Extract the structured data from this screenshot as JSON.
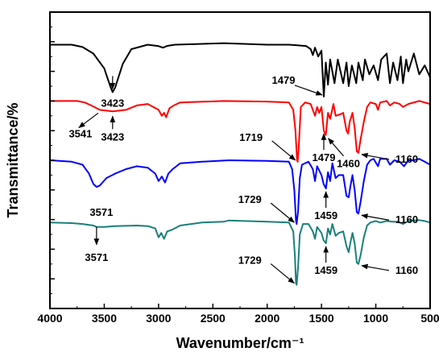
{
  "chart_data": {
    "type": "line",
    "xlabel": "Wavenumber/cm⁻¹",
    "ylabel": "Transmittance/%",
    "xlim": [
      4000,
      500
    ],
    "x_reversed": true,
    "x_ticks": [
      4000,
      3500,
      3000,
      2500,
      2000,
      1500,
      1000,
      500
    ],
    "y_tick_labels_shown": false,
    "grid": false,
    "legend": "none",
    "series": [
      {
        "color": "#000000",
        "baseline": 8.9,
        "points": [
          [
            4000,
            8.9
          ],
          [
            3800,
            8.9
          ],
          [
            3700,
            8.82
          ],
          [
            3600,
            8.6
          ],
          [
            3500,
            8.1
          ],
          [
            3440,
            7.45
          ],
          [
            3423,
            7.3
          ],
          [
            3400,
            7.45
          ],
          [
            3330,
            8.25
          ],
          [
            3250,
            8.75
          ],
          [
            3100,
            8.9
          ],
          [
            3000,
            8.85
          ],
          [
            2960,
            8.8
          ],
          [
            2920,
            8.86
          ],
          [
            2850,
            8.9
          ],
          [
            2400,
            8.95
          ],
          [
            2000,
            8.9
          ],
          [
            1800,
            8.9
          ],
          [
            1720,
            8.88
          ],
          [
            1640,
            8.85
          ],
          [
            1600,
            8.75
          ],
          [
            1580,
            8.55
          ],
          [
            1560,
            8.8
          ],
          [
            1530,
            8.5
          ],
          [
            1500,
            8.7
          ],
          [
            1479,
            7.15
          ],
          [
            1460,
            8.3
          ],
          [
            1440,
            7.55
          ],
          [
            1420,
            8.4
          ],
          [
            1380,
            7.6
          ],
          [
            1350,
            8.4
          ],
          [
            1300,
            7.6
          ],
          [
            1270,
            8.3
          ],
          [
            1250,
            7.5
          ],
          [
            1220,
            8.2
          ],
          [
            1180,
            7.6
          ],
          [
            1160,
            8.3
          ],
          [
            1120,
            7.7
          ],
          [
            1100,
            8.4
          ],
          [
            1060,
            7.9
          ],
          [
            1020,
            8.2
          ],
          [
            980,
            7.7
          ],
          [
            950,
            8.4
          ],
          [
            900,
            8.6
          ],
          [
            870,
            7.6
          ],
          [
            840,
            8.3
          ],
          [
            800,
            7.7
          ],
          [
            770,
            8.5
          ],
          [
            750,
            7.6
          ],
          [
            720,
            8.4
          ],
          [
            700,
            8.0
          ],
          [
            650,
            8.6
          ],
          [
            600,
            7.9
          ],
          [
            550,
            8.2
          ],
          [
            500,
            7.8
          ]
        ]
      },
      {
        "color": "#ff0000",
        "baseline": 7.0,
        "points": [
          [
            4000,
            7.0
          ],
          [
            3750,
            7.0
          ],
          [
            3680,
            6.95
          ],
          [
            3620,
            6.85
          ],
          [
            3541,
            6.7
          ],
          [
            3423,
            6.65
          ],
          [
            3300,
            6.7
          ],
          [
            3200,
            6.85
          ],
          [
            3100,
            6.9
          ],
          [
            3000,
            6.7
          ],
          [
            2970,
            6.5
          ],
          [
            2950,
            6.6
          ],
          [
            2930,
            6.45
          ],
          [
            2900,
            6.75
          ],
          [
            2860,
            6.85
          ],
          [
            2800,
            6.95
          ],
          [
            2400,
            7.0
          ],
          [
            2000,
            6.98
          ],
          [
            1800,
            6.95
          ],
          [
            1760,
            6.7
          ],
          [
            1740,
            6.0
          ],
          [
            1725,
            5.0
          ],
          [
            1719,
            4.95
          ],
          [
            1710,
            5.4
          ],
          [
            1690,
            6.8
          ],
          [
            1650,
            6.95
          ],
          [
            1600,
            6.9
          ],
          [
            1560,
            6.5
          ],
          [
            1540,
            6.8
          ],
          [
            1520,
            6.6
          ],
          [
            1500,
            6.8
          ],
          [
            1479,
            6.0
          ],
          [
            1460,
            5.85
          ],
          [
            1440,
            6.6
          ],
          [
            1420,
            6.4
          ],
          [
            1390,
            6.9
          ],
          [
            1370,
            6.5
          ],
          [
            1330,
            6.55
          ],
          [
            1300,
            6.6
          ],
          [
            1270,
            6.0
          ],
          [
            1255,
            5.9
          ],
          [
            1240,
            6.3
          ],
          [
            1215,
            6.6
          ],
          [
            1195,
            6.1
          ],
          [
            1175,
            5.3
          ],
          [
            1160,
            5.25
          ],
          [
            1140,
            5.7
          ],
          [
            1110,
            6.3
          ],
          [
            1080,
            6.8
          ],
          [
            1050,
            6.95
          ],
          [
            1000,
            6.9
          ],
          [
            980,
            6.7
          ],
          [
            960,
            6.95
          ],
          [
            900,
            7.0
          ],
          [
            870,
            6.85
          ],
          [
            830,
            6.95
          ],
          [
            780,
            6.9
          ],
          [
            750,
            6.8
          ],
          [
            700,
            6.9
          ],
          [
            600,
            7.0
          ],
          [
            500,
            6.9
          ]
        ]
      },
      {
        "color": "#0000ff",
        "baseline": 5.0,
        "points": [
          [
            4000,
            5.0
          ],
          [
            3800,
            4.95
          ],
          [
            3700,
            4.85
          ],
          [
            3640,
            4.55
          ],
          [
            3600,
            4.2
          ],
          [
            3571,
            4.1
          ],
          [
            3540,
            4.15
          ],
          [
            3480,
            4.4
          ],
          [
            3400,
            4.55
          ],
          [
            3300,
            4.7
          ],
          [
            3200,
            4.8
          ],
          [
            3100,
            4.75
          ],
          [
            3030,
            4.55
          ],
          [
            3000,
            4.3
          ],
          [
            2970,
            4.45
          ],
          [
            2940,
            4.25
          ],
          [
            2910,
            4.55
          ],
          [
            2870,
            4.7
          ],
          [
            2800,
            4.9
          ],
          [
            2600,
            4.95
          ],
          [
            2350,
            5.0
          ],
          [
            2000,
            4.98
          ],
          [
            1800,
            4.95
          ],
          [
            1770,
            4.7
          ],
          [
            1750,
            4.0
          ],
          [
            1735,
            2.95
          ],
          [
            1729,
            2.85
          ],
          [
            1715,
            3.3
          ],
          [
            1700,
            4.4
          ],
          [
            1680,
            4.85
          ],
          [
            1620,
            4.95
          ],
          [
            1580,
            4.7
          ],
          [
            1560,
            4.3
          ],
          [
            1540,
            4.8
          ],
          [
            1500,
            4.5
          ],
          [
            1480,
            4.2
          ],
          [
            1459,
            4.05
          ],
          [
            1440,
            4.6
          ],
          [
            1420,
            4.3
          ],
          [
            1400,
            4.9
          ],
          [
            1370,
            4.4
          ],
          [
            1340,
            4.5
          ],
          [
            1300,
            4.5
          ],
          [
            1270,
            3.8
          ],
          [
            1250,
            3.75
          ],
          [
            1235,
            4.1
          ],
          [
            1215,
            4.5
          ],
          [
            1195,
            4.0
          ],
          [
            1175,
            3.25
          ],
          [
            1160,
            3.2
          ],
          [
            1140,
            3.6
          ],
          [
            1110,
            4.3
          ],
          [
            1080,
            4.85
          ],
          [
            1050,
            5.0
          ],
          [
            1020,
            5.05
          ],
          [
            980,
            4.8
          ],
          [
            960,
            5.05
          ],
          [
            900,
            5.05
          ],
          [
            870,
            4.85
          ],
          [
            830,
            5.0
          ],
          [
            780,
            4.95
          ],
          [
            740,
            4.8
          ],
          [
            700,
            5.0
          ],
          [
            650,
            5.0
          ],
          [
            600,
            5.05
          ],
          [
            550,
            4.95
          ],
          [
            500,
            4.85
          ]
        ]
      },
      {
        "color": "#1a7f7a",
        "baseline": 2.9,
        "points": [
          [
            4000,
            2.9
          ],
          [
            3800,
            2.88
          ],
          [
            3700,
            2.85
          ],
          [
            3600,
            2.8
          ],
          [
            3571,
            2.75
          ],
          [
            3500,
            2.75
          ],
          [
            3400,
            2.78
          ],
          [
            3200,
            2.8
          ],
          [
            3100,
            2.78
          ],
          [
            3030,
            2.7
          ],
          [
            3000,
            2.4
          ],
          [
            2975,
            2.55
          ],
          [
            2950,
            2.35
          ],
          [
            2920,
            2.6
          ],
          [
            2880,
            2.65
          ],
          [
            2800,
            2.8
          ],
          [
            2600,
            2.9
          ],
          [
            2400,
            2.93
          ],
          [
            2350,
            2.97
          ],
          [
            2000,
            2.93
          ],
          [
            1800,
            2.9
          ],
          [
            1760,
            2.6
          ],
          [
            1745,
            1.8
          ],
          [
            1735,
            0.85
          ],
          [
            1729,
            0.8
          ],
          [
            1715,
            1.4
          ],
          [
            1700,
            2.5
          ],
          [
            1670,
            2.85
          ],
          [
            1620,
            2.85
          ],
          [
            1580,
            2.6
          ],
          [
            1560,
            2.35
          ],
          [
            1540,
            2.75
          ],
          [
            1500,
            2.55
          ],
          [
            1480,
            2.3
          ],
          [
            1459,
            2.2
          ],
          [
            1440,
            2.7
          ],
          [
            1420,
            2.5
          ],
          [
            1400,
            2.85
          ],
          [
            1370,
            2.45
          ],
          [
            1340,
            2.55
          ],
          [
            1300,
            2.6
          ],
          [
            1270,
            2.1
          ],
          [
            1250,
            1.9
          ],
          [
            1235,
            2.2
          ],
          [
            1215,
            2.55
          ],
          [
            1195,
            2.2
          ],
          [
            1175,
            1.55
          ],
          [
            1160,
            1.5
          ],
          [
            1140,
            1.8
          ],
          [
            1110,
            2.4
          ],
          [
            1080,
            2.8
          ],
          [
            1050,
            2.9
          ],
          [
            1000,
            2.95
          ],
          [
            960,
            2.9
          ],
          [
            900,
            2.95
          ],
          [
            850,
            2.93
          ],
          [
            800,
            2.93
          ],
          [
            750,
            2.85
          ],
          [
            700,
            2.95
          ],
          [
            600,
            2.98
          ],
          [
            550,
            2.95
          ],
          [
            500,
            2.9
          ]
        ]
      }
    ],
    "annotations": [
      {
        "text": "3423",
        "series": 0,
        "x": 3423,
        "arrow": "down",
        "label_pos": "below"
      },
      {
        "text": "1479",
        "series": 0,
        "x": 1479,
        "arrow": "down",
        "label_pos": "left"
      },
      {
        "text": "3541",
        "series": 1,
        "x": 3541,
        "arrow": "left-down",
        "label_pos": "below"
      },
      {
        "text": "3423",
        "series": 1,
        "x": 3423,
        "arrow": "down",
        "label_pos": "below"
      },
      {
        "text": "1719",
        "series": 1,
        "x": 1719,
        "arrow": "down-right",
        "label_pos": "left"
      },
      {
        "text": "1479",
        "series": 1,
        "x": 1479,
        "arrow": "up",
        "label_pos": "below"
      },
      {
        "text": "1460",
        "series": 1,
        "x": 1460,
        "arrow": "up-left",
        "label_pos": "below"
      },
      {
        "text": "1160",
        "series": 1,
        "x": 1160,
        "arrow": "left",
        "label_pos": "right"
      },
      {
        "text": "3571",
        "series": 2,
        "x": 3571,
        "arrow": "up",
        "label_pos": "below"
      },
      {
        "text": "1729",
        "series": 2,
        "x": 1729,
        "arrow": "down-right",
        "label_pos": "left"
      },
      {
        "text": "1459",
        "series": 2,
        "x": 1459,
        "arrow": "up",
        "label_pos": "below"
      },
      {
        "text": "1160",
        "series": 2,
        "x": 1160,
        "arrow": "left",
        "label_pos": "right"
      },
      {
        "text": "3571",
        "series": 3,
        "x": 3571,
        "arrow": "down",
        "label_pos": "below"
      },
      {
        "text": "1729",
        "series": 3,
        "x": 1729,
        "arrow": "down-right",
        "label_pos": "left"
      },
      {
        "text": "1459",
        "series": 3,
        "x": 1459,
        "arrow": "up",
        "label_pos": "below"
      },
      {
        "text": "1160",
        "series": 3,
        "x": 1160,
        "arrow": "left",
        "label_pos": "right"
      }
    ]
  }
}
